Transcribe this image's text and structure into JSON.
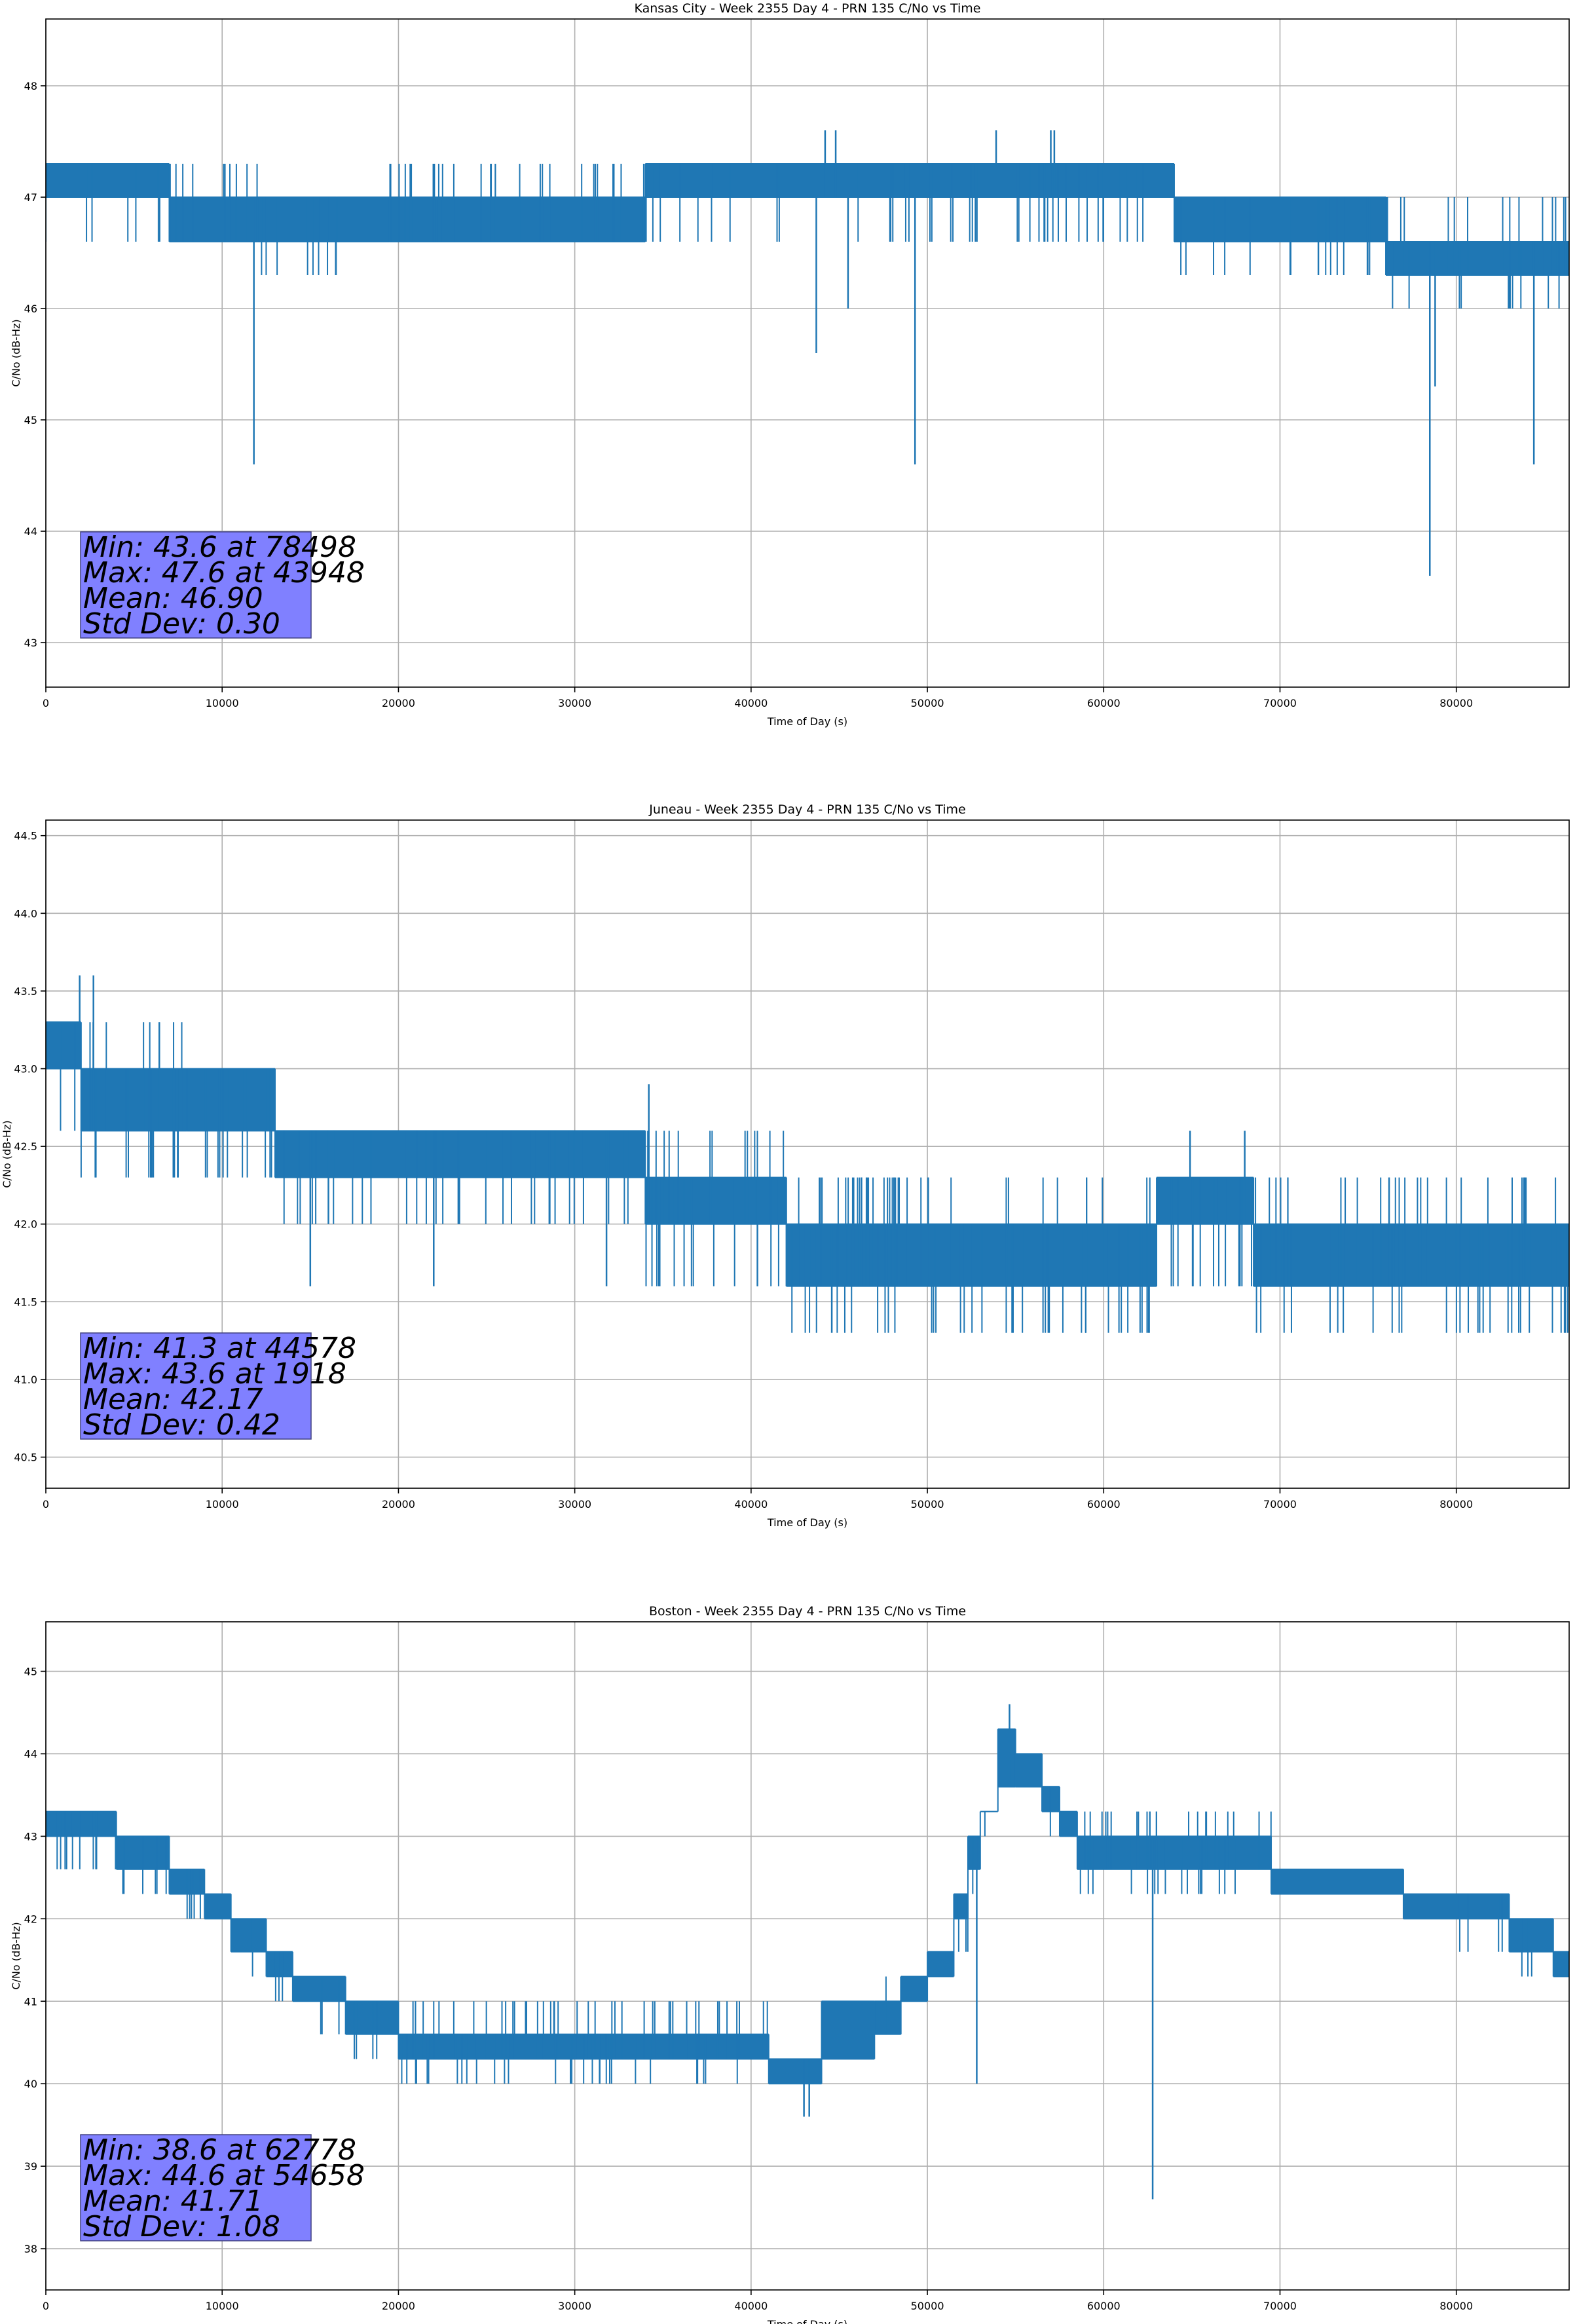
{
  "chart_data": [
    {
      "type": "line",
      "title": "Kansas City - Week 2355 Day 4 - PRN 135 C/No vs Time",
      "xlabel": "Time of Day (s)",
      "ylabel": "C/No (dB-Hz)",
      "xlim": [
        0,
        86400
      ],
      "ylim": [
        42.6,
        48.6
      ],
      "xticks": [
        0,
        10000,
        20000,
        30000,
        40000,
        50000,
        60000,
        70000,
        80000
      ],
      "yticks": [
        43,
        44,
        45,
        46,
        47,
        48
      ],
      "grid": true,
      "color": "#1f77b4",
      "bands_note": "t_start, t_end, low, high, excursion_low, excursion_high",
      "bands": [
        [
          0,
          7000,
          47.0,
          47.3,
          46.6,
          47.3
        ],
        [
          7000,
          12000,
          46.6,
          47.0,
          46.6,
          47.3
        ],
        [
          12000,
          16500,
          46.6,
          47.0,
          46.3,
          47.0
        ],
        [
          16500,
          19500,
          46.6,
          47.0,
          46.6,
          47.0
        ],
        [
          19500,
          34000,
          46.6,
          47.0,
          46.6,
          47.3
        ],
        [
          34000,
          64000,
          47.0,
          47.3,
          46.6,
          47.3
        ],
        [
          64000,
          76000,
          46.6,
          47.0,
          46.3,
          47.0
        ],
        [
          76000,
          86400,
          46.3,
          46.6,
          46.0,
          47.0
        ]
      ],
      "spikes": [
        [
          11800,
          44.6
        ],
        [
          43700,
          45.6
        ],
        [
          44200,
          47.6
        ],
        [
          44800,
          47.6
        ],
        [
          45500,
          46.0
        ],
        [
          49300,
          44.6
        ],
        [
          53900,
          47.6
        ],
        [
          57000,
          47.6
        ],
        [
          57200,
          47.6
        ],
        [
          78498,
          43.6
        ],
        [
          78800,
          45.3
        ],
        [
          84400,
          44.6
        ]
      ],
      "stats": {
        "min": "Min: 43.6 at 78498",
        "max": "Max: 47.6 at 43948",
        "mean": "Mean: 46.90",
        "std": "Std Dev: 0.30"
      }
    },
    {
      "type": "line",
      "title": "Juneau - Week 2355 Day 4 - PRN 135 C/No vs Time",
      "xlabel": "Time of Day (s)",
      "ylabel": "C/No (dB-Hz)",
      "xlim": [
        0,
        86400
      ],
      "ylim": [
        40.3,
        44.6
      ],
      "xticks": [
        0,
        10000,
        20000,
        30000,
        40000,
        50000,
        60000,
        70000,
        80000
      ],
      "yticks": [
        40.5,
        41.0,
        41.5,
        42.0,
        42.5,
        43.0,
        43.5,
        44.0,
        44.5
      ],
      "grid": true,
      "color": "#1f77b4",
      "bands": [
        [
          0,
          2000,
          43.0,
          43.3,
          42.6,
          43.3
        ],
        [
          2000,
          8000,
          42.6,
          43.0,
          42.3,
          43.3
        ],
        [
          8000,
          13000,
          42.6,
          43.0,
          42.3,
          43.0
        ],
        [
          13000,
          34000,
          42.3,
          42.6,
          42.0,
          42.6
        ],
        [
          34000,
          42000,
          42.0,
          42.3,
          41.6,
          42.6
        ],
        [
          42000,
          63000,
          41.6,
          42.0,
          41.3,
          42.3
        ],
        [
          63000,
          68500,
          42.0,
          42.3,
          41.6,
          42.3
        ],
        [
          68500,
          86400,
          41.6,
          42.0,
          41.3,
          42.3
        ]
      ],
      "spikes": [
        [
          1918,
          43.6
        ],
        [
          2700,
          43.6
        ],
        [
          15000,
          41.6
        ],
        [
          22000,
          41.6
        ],
        [
          31800,
          41.6
        ],
        [
          34200,
          42.9
        ],
        [
          44578,
          41.3
        ],
        [
          64900,
          42.6
        ],
        [
          68000,
          42.6
        ]
      ],
      "stats": {
        "min": "Min: 41.3 at 44578",
        "max": "Max: 43.6 at 1918",
        "mean": "Mean: 42.17",
        "std": "Std Dev: 0.42"
      }
    },
    {
      "type": "line",
      "title": "Boston - Week 2355 Day 4 - PRN 135 C/No vs Time",
      "xlabel": "Time of Day (s)",
      "ylabel": "C/No (dB-Hz)",
      "xlim": [
        0,
        86400
      ],
      "ylim": [
        37.5,
        45.6
      ],
      "xticks": [
        0,
        10000,
        20000,
        30000,
        40000,
        50000,
        60000,
        70000,
        80000
      ],
      "yticks": [
        38,
        39,
        40,
        41,
        42,
        43,
        44,
        45
      ],
      "grid": true,
      "color": "#1f77b4",
      "bands": [
        [
          0,
          4000,
          43.0,
          43.3,
          42.6,
          43.3
        ],
        [
          4000,
          7000,
          42.6,
          43.0,
          42.3,
          43.0
        ],
        [
          7000,
          9000,
          42.3,
          42.6,
          42.0,
          42.6
        ],
        [
          9000,
          10500,
          42.0,
          42.3,
          42.0,
          42.3
        ],
        [
          10500,
          12500,
          41.6,
          42.0,
          41.3,
          42.0
        ],
        [
          12500,
          14000,
          41.3,
          41.6,
          41.0,
          41.6
        ],
        [
          14000,
          17000,
          41.0,
          41.3,
          40.6,
          41.3
        ],
        [
          17000,
          20000,
          40.6,
          41.0,
          40.3,
          41.0
        ],
        [
          20000,
          41000,
          40.3,
          40.6,
          40.0,
          41.0
        ],
        [
          41000,
          44000,
          40.0,
          40.3,
          40.0,
          40.3
        ],
        [
          44000,
          47000,
          40.3,
          41.0,
          40.3,
          41.0
        ],
        [
          47000,
          48500,
          40.6,
          41.0,
          40.6,
          41.3
        ],
        [
          48500,
          50000,
          41.0,
          41.3,
          41.0,
          41.3
        ],
        [
          50000,
          51500,
          41.3,
          41.6,
          41.3,
          41.6
        ],
        [
          51500,
          52300,
          42.0,
          42.3,
          41.6,
          42.3
        ],
        [
          52300,
          53000,
          42.6,
          43.0,
          42.3,
          43.0
        ],
        [
          53000,
          54000,
          43.3,
          43.3,
          43.0,
          43.3
        ],
        [
          54000,
          55000,
          43.6,
          44.3,
          43.6,
          44.3
        ],
        [
          55000,
          56500,
          43.6,
          44.0,
          43.6,
          44.0
        ],
        [
          56500,
          57500,
          43.3,
          43.6,
          43.0,
          43.6
        ],
        [
          57500,
          58500,
          43.0,
          43.3,
          43.0,
          43.3
        ],
        [
          58500,
          69500,
          42.6,
          43.0,
          42.3,
          43.3
        ],
        [
          69500,
          77000,
          42.3,
          42.6,
          42.3,
          42.6
        ],
        [
          77000,
          83000,
          42.0,
          42.3,
          41.6,
          42.3
        ],
        [
          83000,
          85500,
          41.6,
          42.0,
          41.3,
          42.0
        ],
        [
          85500,
          86400,
          41.3,
          41.6,
          41.3,
          41.6
        ]
      ],
      "spikes": [
        [
          43000,
          39.6
        ],
        [
          43300,
          39.6
        ],
        [
          52800,
          40.0
        ],
        [
          54658,
          44.6
        ],
        [
          62778,
          38.6
        ]
      ],
      "stats": {
        "min": "Min: 38.6 at 62778",
        "max": "Max: 44.6 at 54658",
        "mean": "Mean: 41.71",
        "std": "Std Dev: 1.08"
      }
    }
  ]
}
